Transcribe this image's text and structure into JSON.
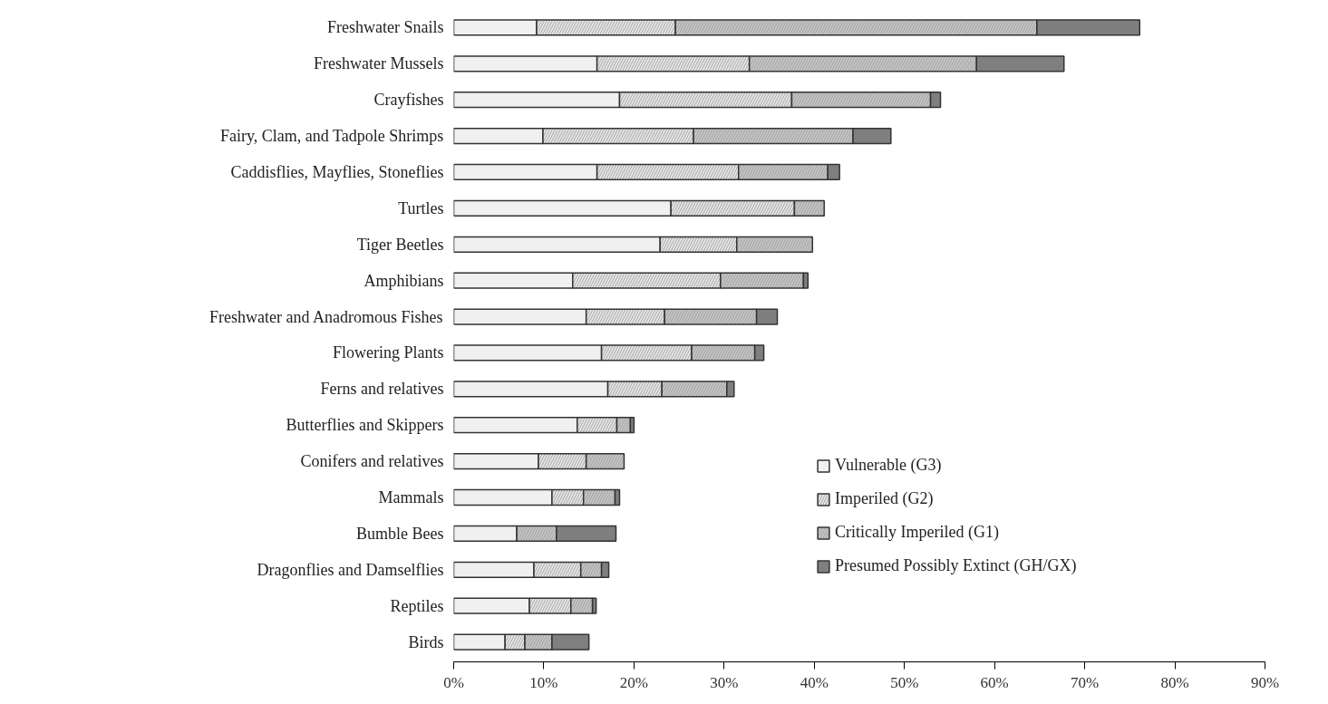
{
  "chart_data": {
    "type": "bar",
    "orientation": "horizontal",
    "stacked": true,
    "categories": [
      "Freshwater Snails",
      "Freshwater Mussels",
      "Crayfishes",
      "Fairy, Clam, and Tadpole Shrimps",
      "Caddisflies, Mayflies, Stoneflies",
      "Turtles",
      "Tiger Beetles",
      "Amphibians",
      "Freshwater and Anadromous Fishes",
      "Flowering Plants",
      "Ferns and relatives",
      "Butterflies and Skippers",
      "Conifers and relatives",
      "Mammals",
      "Bumble Bees",
      "Dragonflies and Damselflies",
      "Reptiles",
      "Birds"
    ],
    "series": [
      {
        "name": "Vulnerable (G3)",
        "color": "#f0f0f0",
        "values": [
          9.2,
          15.9,
          18.4,
          9.9,
          15.9,
          24.1,
          22.9,
          13.2,
          14.7,
          16.4,
          17.1,
          13.7,
          9.4,
          10.9,
          7.0,
          8.9,
          8.4,
          5.7
        ]
      },
      {
        "name": "Imperiled (G2)",
        "color": "#e4e4e4",
        "values": [
          15.4,
          16.9,
          19.1,
          16.7,
          15.7,
          13.7,
          8.5,
          16.4,
          8.7,
          10.0,
          6.0,
          4.4,
          5.3,
          3.5,
          null,
          5.2,
          4.6,
          2.2
        ]
      },
      {
        "name": "Critically Imperiled (G1)",
        "color": "#c4c4c4",
        "values": [
          40.1,
          25.2,
          15.4,
          17.7,
          9.9,
          3.3,
          8.4,
          9.2,
          10.2,
          7.0,
          7.2,
          1.5,
          4.2,
          3.5,
          4.4,
          2.3,
          2.4,
          3.0
        ]
      },
      {
        "name": "Presumed Possibly Extinct (GH/GX)",
        "color": "#7f7f7f",
        "values": [
          11.4,
          9.7,
          1.1,
          4.2,
          1.3,
          null,
          null,
          0.5,
          2.3,
          1.0,
          0.8,
          0.4,
          null,
          0.5,
          6.6,
          0.8,
          0.4,
          4.1
        ]
      }
    ],
    "xlim": [
      0,
      90
    ],
    "xticks": [
      {
        "value": 0,
        "label": "0%"
      },
      {
        "value": 10,
        "label": "10%"
      },
      {
        "value": 20,
        "label": "20%"
      },
      {
        "value": 30,
        "label": "30%"
      },
      {
        "value": 40,
        "label": "40%"
      },
      {
        "value": 50,
        "label": "50%"
      },
      {
        "value": 60,
        "label": "60%"
      },
      {
        "value": 70,
        "label": "70%"
      },
      {
        "value": 80,
        "label": "80%"
      },
      {
        "value": 90,
        "label": "90%"
      }
    ],
    "legend": "right",
    "grid": false
  }
}
